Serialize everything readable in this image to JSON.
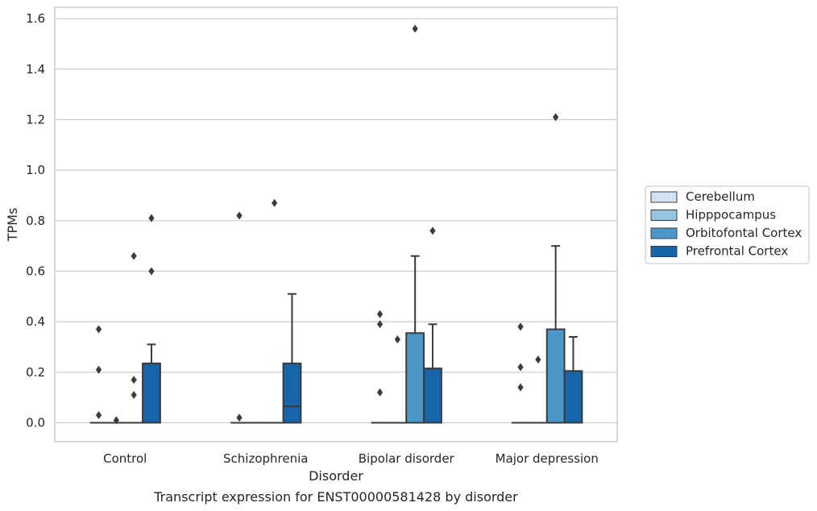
{
  "caption": "Transcript expression for ENST00000581428 by disorder",
  "chart_data": {
    "type": "box",
    "xlabel": "Disorder",
    "ylabel": "TPMs",
    "ylim": [
      -0.075,
      1.645
    ],
    "yticks": [
      0.0,
      0.2,
      0.4,
      0.6,
      0.8,
      1.0,
      1.2,
      1.4,
      1.6
    ],
    "ytick_labels": [
      "0.0",
      "0.2",
      "0.4",
      "0.6",
      "0.8",
      "1.0",
      "1.2",
      "1.4",
      "1.6"
    ],
    "grid": "horizontal",
    "legend_position": "right",
    "categories": [
      "Control",
      "Schizophrenia",
      "Bipolar disorder",
      "Major depression"
    ],
    "series": [
      {
        "name": "Cerebellum",
        "color": "#d0e1f2",
        "boxes": [
          {
            "q1": 0,
            "median": 0,
            "q3": 0,
            "whisker_low": 0,
            "whisker_high": 0,
            "outliers": [
              0.37,
              0.21,
              0.03
            ]
          },
          {
            "q1": 0,
            "median": 0,
            "q3": 0,
            "whisker_low": 0,
            "whisker_high": 0,
            "outliers": [
              0.82,
              0.02
            ]
          },
          {
            "q1": 0,
            "median": 0,
            "q3": 0,
            "whisker_low": 0,
            "whisker_high": 0,
            "outliers": [
              0.43,
              0.39,
              0.12
            ]
          },
          {
            "q1": 0,
            "median": 0,
            "q3": 0,
            "whisker_low": 0,
            "whisker_high": 0,
            "outliers": [
              0.38,
              0.22,
              0.14
            ]
          }
        ]
      },
      {
        "name": "Hipppocampus",
        "color": "#94c4df",
        "boxes": [
          {
            "q1": 0,
            "median": 0,
            "q3": 0,
            "whisker_low": 0,
            "whisker_high": 0,
            "outliers": [
              0.01
            ]
          },
          {
            "q1": 0,
            "median": 0,
            "q3": 0,
            "whisker_low": 0,
            "whisker_high": 0,
            "outliers": []
          },
          {
            "q1": 0,
            "median": 0,
            "q3": 0,
            "whisker_low": 0,
            "whisker_high": 0,
            "outliers": [
              0.33
            ]
          },
          {
            "q1": 0,
            "median": 0,
            "q3": 0,
            "whisker_low": 0,
            "whisker_high": 0,
            "outliers": [
              0.25
            ]
          }
        ]
      },
      {
        "name": "Orbitofontal Cortex",
        "color": "#4a98c9",
        "boxes": [
          {
            "q1": 0,
            "median": 0,
            "q3": 0,
            "whisker_low": 0,
            "whisker_high": 0,
            "outliers": [
              0.66,
              0.17,
              0.11
            ]
          },
          {
            "q1": 0,
            "median": 0,
            "q3": 0,
            "whisker_low": 0,
            "whisker_high": 0,
            "outliers": [
              0.87
            ]
          },
          {
            "q1": 0,
            "median": 0,
            "q3": 0.355,
            "whisker_low": 0,
            "whisker_high": 0.66,
            "outliers": [
              1.56
            ]
          },
          {
            "q1": 0,
            "median": 0,
            "q3": 0.37,
            "whisker_low": 0,
            "whisker_high": 0.7,
            "outliers": [
              1.21
            ]
          }
        ]
      },
      {
        "name": "Prefrontal Cortex",
        "color": "#1764ab",
        "boxes": [
          {
            "q1": 0,
            "median": 0,
            "q3": 0.235,
            "whisker_low": 0,
            "whisker_high": 0.31,
            "outliers": [
              0.81,
              0.6
            ]
          },
          {
            "q1": 0,
            "median": 0.065,
            "q3": 0.235,
            "whisker_low": 0,
            "whisker_high": 0.51,
            "outliers": []
          },
          {
            "q1": 0,
            "median": 0,
            "q3": 0.215,
            "whisker_low": 0,
            "whisker_high": 0.39,
            "outliers": [
              0.76
            ]
          },
          {
            "q1": 0,
            "median": 0,
            "q3": 0.205,
            "whisker_low": 0,
            "whisker_high": 0.34,
            "outliers": []
          }
        ]
      }
    ]
  }
}
